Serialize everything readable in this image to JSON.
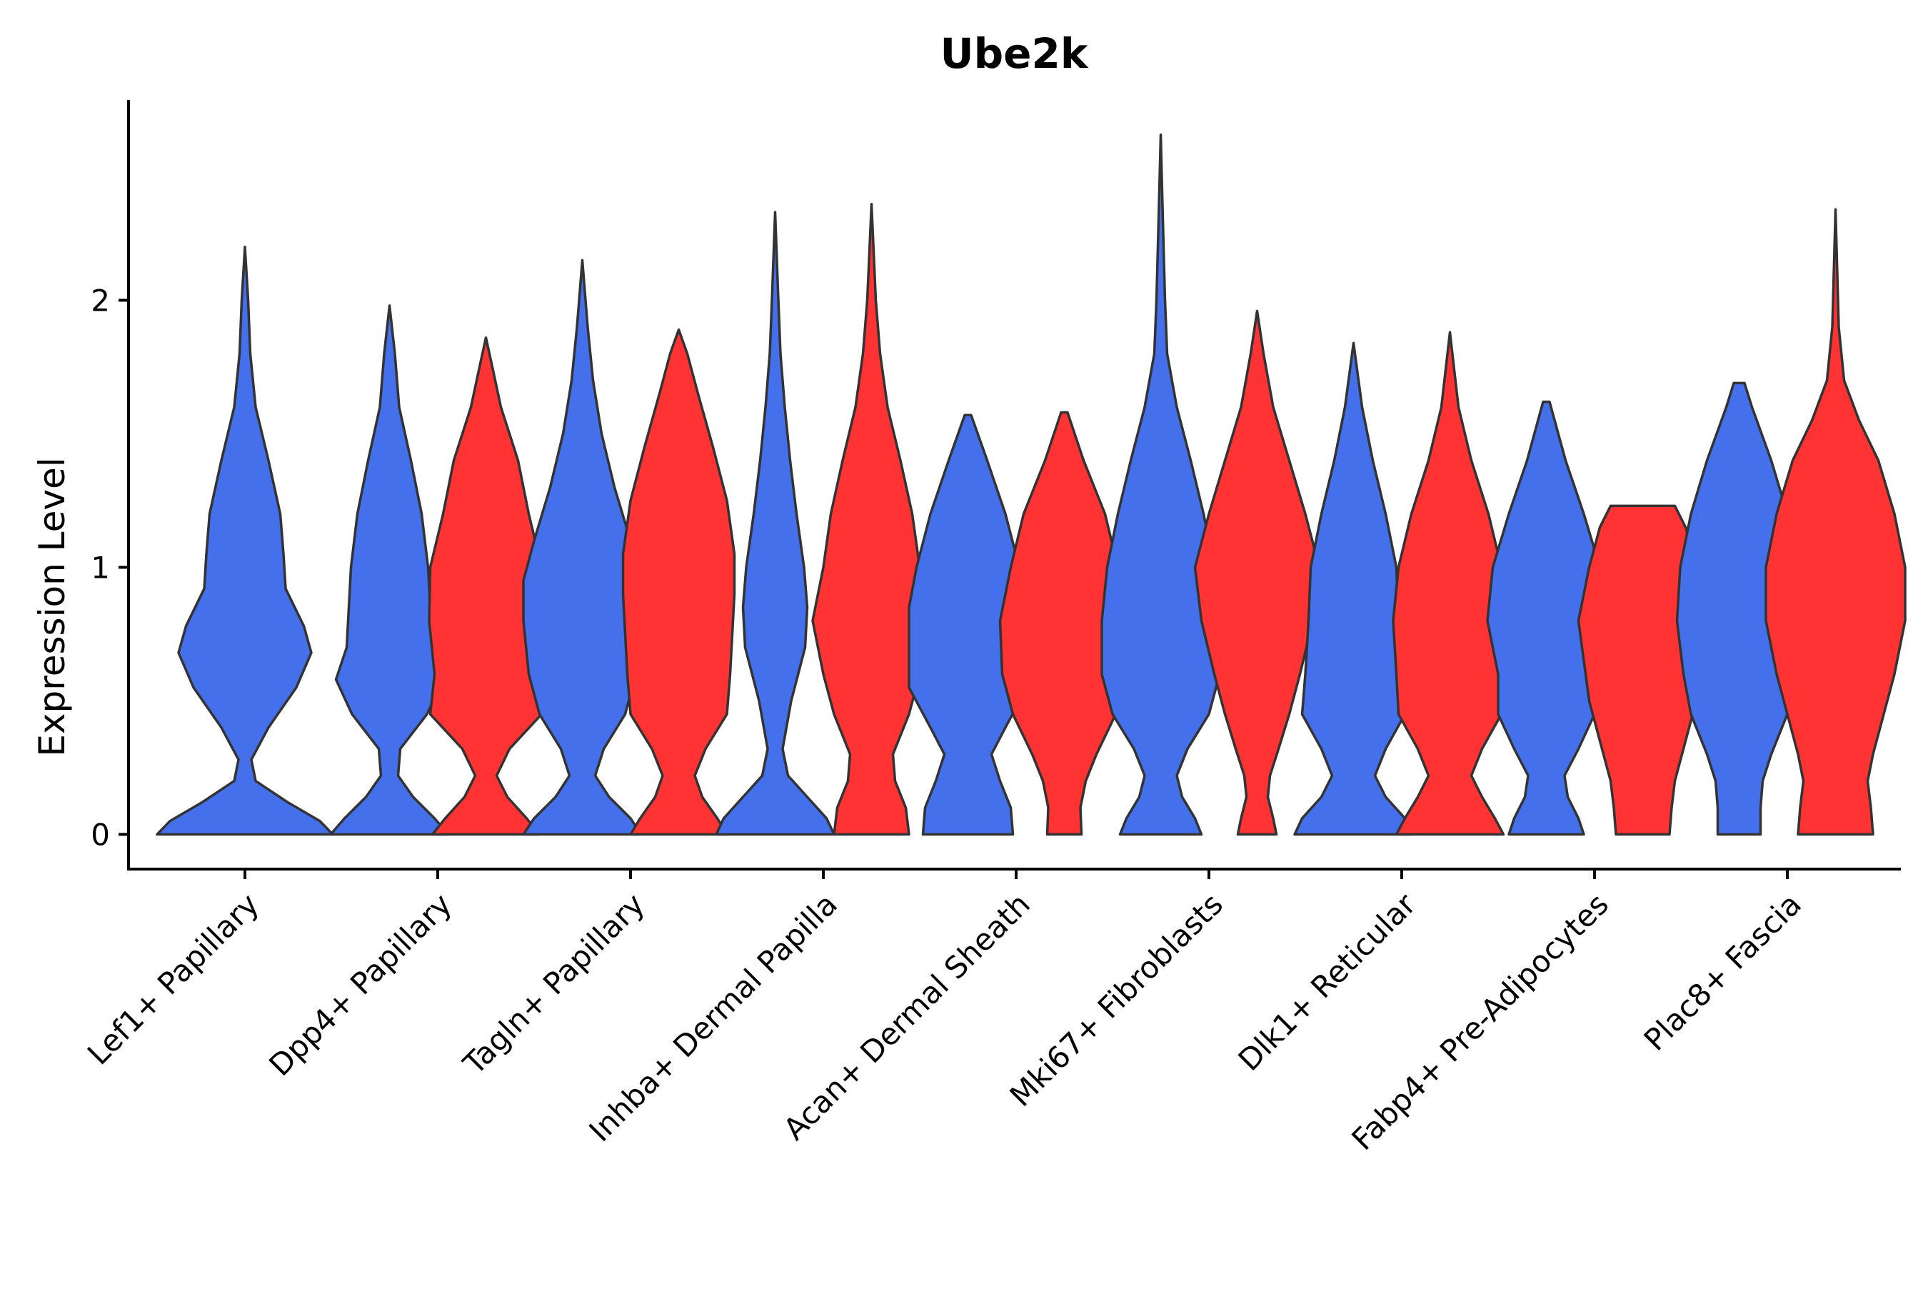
{
  "chart_data": {
    "type": "violin",
    "title": "Ube2k",
    "xlabel": "",
    "ylabel": "Expression Level",
    "ylim": [
      -0.13,
      2.75
    ],
    "yticks": [
      0,
      1,
      2
    ],
    "categories": [
      "Lef1+ Papillary",
      "Dpp4+ Papillary",
      "Tagln+ Papillary",
      "Inhba+ Dermal Papilla",
      "Acan+ Dermal Sheath",
      "Mki67+ Fibroblasts",
      "Dlk1+ Reticular",
      "Fabp4+ Pre-Adipocytes",
      "Plac8+ Fascia"
    ],
    "series_colors": {
      "blue": "#4470EB",
      "red": "#FF3333"
    },
    "violins": [
      {
        "category": "Lef1+ Papillary",
        "group": "blue",
        "offset": 0,
        "max": 2.2,
        "profile": [
          [
            0,
            0.82
          ],
          [
            0.05,
            0.7
          ],
          [
            0.12,
            0.4
          ],
          [
            0.2,
            0.1
          ],
          [
            0.28,
            0.06
          ],
          [
            0.4,
            0.22
          ],
          [
            0.55,
            0.48
          ],
          [
            0.68,
            0.62
          ],
          [
            0.78,
            0.55
          ],
          [
            0.92,
            0.38
          ],
          [
            1.05,
            0.36
          ],
          [
            1.2,
            0.33
          ],
          [
            1.4,
            0.22
          ],
          [
            1.6,
            0.1
          ],
          [
            1.8,
            0.05
          ],
          [
            2.0,
            0.03
          ],
          [
            2.2,
            0
          ]
        ]
      },
      {
        "category": "Dpp4+ Papillary",
        "group": "blue",
        "offset": -0.25,
        "max": 1.98,
        "profile": [
          [
            0,
            0.55
          ],
          [
            0.06,
            0.42
          ],
          [
            0.14,
            0.22
          ],
          [
            0.22,
            0.08
          ],
          [
            0.32,
            0.1
          ],
          [
            0.45,
            0.35
          ],
          [
            0.58,
            0.5
          ],
          [
            0.7,
            0.4
          ],
          [
            0.85,
            0.38
          ],
          [
            1.0,
            0.36
          ],
          [
            1.2,
            0.3
          ],
          [
            1.4,
            0.2
          ],
          [
            1.6,
            0.09
          ],
          [
            1.8,
            0.05
          ],
          [
            1.98,
            0
          ]
        ]
      },
      {
        "category": "Dpp4+ Papillary",
        "group": "red",
        "offset": 0.25,
        "max": 1.86,
        "profile": [
          [
            0,
            0.5
          ],
          [
            0.06,
            0.38
          ],
          [
            0.14,
            0.2
          ],
          [
            0.22,
            0.1
          ],
          [
            0.32,
            0.22
          ],
          [
            0.45,
            0.52
          ],
          [
            0.6,
            0.48
          ],
          [
            0.8,
            0.53
          ],
          [
            1.0,
            0.52
          ],
          [
            1.2,
            0.4
          ],
          [
            1.4,
            0.3
          ],
          [
            1.6,
            0.14
          ],
          [
            1.75,
            0.06
          ],
          [
            1.86,
            0
          ]
        ]
      },
      {
        "category": "Tagln+ Papillary",
        "group": "blue",
        "offset": -0.25,
        "max": 2.15,
        "profile": [
          [
            0,
            0.55
          ],
          [
            0.06,
            0.45
          ],
          [
            0.14,
            0.25
          ],
          [
            0.22,
            0.12
          ],
          [
            0.32,
            0.2
          ],
          [
            0.45,
            0.4
          ],
          [
            0.6,
            0.5
          ],
          [
            0.8,
            0.55
          ],
          [
            0.95,
            0.55
          ],
          [
            1.1,
            0.45
          ],
          [
            1.3,
            0.3
          ],
          [
            1.5,
            0.18
          ],
          [
            1.7,
            0.1
          ],
          [
            1.9,
            0.05
          ],
          [
            2.15,
            0
          ]
        ]
      },
      {
        "category": "Tagln+ Papillary",
        "group": "red",
        "offset": 0.25,
        "max": 1.89,
        "profile": [
          [
            0,
            0.45
          ],
          [
            0.06,
            0.36
          ],
          [
            0.14,
            0.22
          ],
          [
            0.22,
            0.15
          ],
          [
            0.32,
            0.25
          ],
          [
            0.45,
            0.45
          ],
          [
            0.6,
            0.48
          ],
          [
            0.75,
            0.5
          ],
          [
            0.9,
            0.52
          ],
          [
            1.05,
            0.52
          ],
          [
            1.25,
            0.45
          ],
          [
            1.45,
            0.32
          ],
          [
            1.65,
            0.18
          ],
          [
            1.8,
            0.08
          ],
          [
            1.89,
            0.0
          ]
        ]
      },
      {
        "category": "Inhba+ Dermal Papilla",
        "group": "blue",
        "offset": -0.25,
        "max": 2.33,
        "profile": [
          [
            0,
            0.55
          ],
          [
            0.06,
            0.48
          ],
          [
            0.14,
            0.3
          ],
          [
            0.22,
            0.12
          ],
          [
            0.32,
            0.07
          ],
          [
            0.5,
            0.15
          ],
          [
            0.7,
            0.28
          ],
          [
            0.85,
            0.3
          ],
          [
            1.0,
            0.27
          ],
          [
            1.2,
            0.2
          ],
          [
            1.4,
            0.14
          ],
          [
            1.6,
            0.09
          ],
          [
            1.8,
            0.05
          ],
          [
            2.0,
            0.03
          ],
          [
            2.33,
            0
          ]
        ]
      },
      {
        "category": "Inhba+ Dermal Papilla",
        "group": "red",
        "offset": 0.25,
        "max": 2.36,
        "profile": [
          [
            0,
            0.35
          ],
          [
            0.1,
            0.32
          ],
          [
            0.2,
            0.22
          ],
          [
            0.3,
            0.2
          ],
          [
            0.45,
            0.35
          ],
          [
            0.6,
            0.45
          ],
          [
            0.8,
            0.55
          ],
          [
            1.0,
            0.45
          ],
          [
            1.2,
            0.38
          ],
          [
            1.4,
            0.27
          ],
          [
            1.6,
            0.15
          ],
          [
            1.8,
            0.08
          ],
          [
            2.0,
            0.04
          ],
          [
            2.36,
            0
          ]
        ]
      },
      {
        "category": "Acan+ Dermal Sheath",
        "group": "blue",
        "offset": -0.25,
        "max": 1.57,
        "profile": [
          [
            0,
            0.42
          ],
          [
            0.1,
            0.4
          ],
          [
            0.2,
            0.3
          ],
          [
            0.3,
            0.22
          ],
          [
            0.4,
            0.35
          ],
          [
            0.55,
            0.55
          ],
          [
            0.7,
            0.55
          ],
          [
            0.85,
            0.55
          ],
          [
            1.0,
            0.48
          ],
          [
            1.2,
            0.35
          ],
          [
            1.4,
            0.18
          ],
          [
            1.57,
            0.03
          ]
        ]
      },
      {
        "category": "Acan+ Dermal Sheath",
        "group": "red",
        "offset": 0.25,
        "max": 1.58,
        "profile": [
          [
            0,
            0.16
          ],
          [
            0.1,
            0.15
          ],
          [
            0.2,
            0.2
          ],
          [
            0.3,
            0.3
          ],
          [
            0.45,
            0.48
          ],
          [
            0.6,
            0.58
          ],
          [
            0.8,
            0.6
          ],
          [
            1.0,
            0.5
          ],
          [
            1.2,
            0.38
          ],
          [
            1.4,
            0.18
          ],
          [
            1.58,
            0.03
          ]
        ]
      },
      {
        "category": "Mki67+ Fibroblasts",
        "group": "blue",
        "offset": -0.25,
        "max": 2.62,
        "profile": [
          [
            0,
            0.38
          ],
          [
            0.06,
            0.32
          ],
          [
            0.14,
            0.2
          ],
          [
            0.22,
            0.15
          ],
          [
            0.32,
            0.25
          ],
          [
            0.45,
            0.45
          ],
          [
            0.6,
            0.55
          ],
          [
            0.8,
            0.55
          ],
          [
            1.0,
            0.5
          ],
          [
            1.2,
            0.4
          ],
          [
            1.4,
            0.28
          ],
          [
            1.6,
            0.15
          ],
          [
            1.8,
            0.06
          ],
          [
            2.0,
            0.04
          ],
          [
            2.3,
            0.02
          ],
          [
            2.62,
            0
          ]
        ]
      },
      {
        "category": "Mki67+ Fibroblasts",
        "group": "red",
        "offset": 0.25,
        "max": 1.96,
        "profile": [
          [
            0,
            0.18
          ],
          [
            0.06,
            0.15
          ],
          [
            0.14,
            0.1
          ],
          [
            0.22,
            0.12
          ],
          [
            0.32,
            0.2
          ],
          [
            0.45,
            0.3
          ],
          [
            0.6,
            0.4
          ],
          [
            0.8,
            0.52
          ],
          [
            1.0,
            0.58
          ],
          [
            1.2,
            0.45
          ],
          [
            1.4,
            0.3
          ],
          [
            1.6,
            0.15
          ],
          [
            1.8,
            0.06
          ],
          [
            1.96,
            0
          ]
        ]
      },
      {
        "category": "Dlk1+ Reticular",
        "group": "blue",
        "offset": -0.25,
        "max": 1.84,
        "profile": [
          [
            0,
            0.55
          ],
          [
            0.06,
            0.48
          ],
          [
            0.14,
            0.3
          ],
          [
            0.22,
            0.2
          ],
          [
            0.32,
            0.3
          ],
          [
            0.45,
            0.48
          ],
          [
            0.6,
            0.45
          ],
          [
            0.8,
            0.42
          ],
          [
            1.0,
            0.4
          ],
          [
            1.2,
            0.3
          ],
          [
            1.4,
            0.18
          ],
          [
            1.6,
            0.08
          ],
          [
            1.84,
            0
          ]
        ]
      },
      {
        "category": "Dlk1+ Reticular",
        "group": "red",
        "offset": 0.25,
        "max": 1.88,
        "profile": [
          [
            0,
            0.5
          ],
          [
            0.06,
            0.42
          ],
          [
            0.14,
            0.3
          ],
          [
            0.22,
            0.2
          ],
          [
            0.32,
            0.3
          ],
          [
            0.45,
            0.48
          ],
          [
            0.6,
            0.5
          ],
          [
            0.8,
            0.53
          ],
          [
            1.0,
            0.48
          ],
          [
            1.2,
            0.36
          ],
          [
            1.4,
            0.2
          ],
          [
            1.6,
            0.08
          ],
          [
            1.88,
            0
          ]
        ]
      },
      {
        "category": "Fabp4+ Pre-Adipocytes",
        "group": "blue",
        "offset": -0.25,
        "max": 1.62,
        "profile": [
          [
            0,
            0.35
          ],
          [
            0.06,
            0.3
          ],
          [
            0.14,
            0.2
          ],
          [
            0.22,
            0.17
          ],
          [
            0.32,
            0.3
          ],
          [
            0.45,
            0.45
          ],
          [
            0.6,
            0.45
          ],
          [
            0.8,
            0.55
          ],
          [
            1.0,
            0.5
          ],
          [
            1.2,
            0.35
          ],
          [
            1.4,
            0.18
          ],
          [
            1.62,
            0.03
          ]
        ]
      },
      {
        "category": "Fabp4+ Pre-Adipocytes",
        "group": "red",
        "offset": 0.25,
        "max": 1.23,
        "profile": [
          [
            0,
            0.25
          ],
          [
            0.1,
            0.27
          ],
          [
            0.2,
            0.3
          ],
          [
            0.35,
            0.4
          ],
          [
            0.5,
            0.5
          ],
          [
            0.65,
            0.55
          ],
          [
            0.8,
            0.6
          ],
          [
            1.0,
            0.5
          ],
          [
            1.15,
            0.4
          ],
          [
            1.23,
            0.3
          ]
        ]
      },
      {
        "category": "Plac8+ Fascia",
        "group": "blue",
        "offset": -0.25,
        "max": 1.69,
        "profile": [
          [
            0,
            0.2
          ],
          [
            0.1,
            0.2
          ],
          [
            0.2,
            0.22
          ],
          [
            0.3,
            0.3
          ],
          [
            0.45,
            0.45
          ],
          [
            0.6,
            0.52
          ],
          [
            0.8,
            0.58
          ],
          [
            1.0,
            0.55
          ],
          [
            1.2,
            0.45
          ],
          [
            1.4,
            0.3
          ],
          [
            1.6,
            0.12
          ],
          [
            1.69,
            0.05
          ]
        ]
      },
      {
        "category": "Plac8+ Fascia",
        "group": "red",
        "offset": 0.25,
        "max": 2.34,
        "profile": [
          [
            0,
            0.35
          ],
          [
            0.1,
            0.33
          ],
          [
            0.2,
            0.3
          ],
          [
            0.3,
            0.35
          ],
          [
            0.45,
            0.45
          ],
          [
            0.6,
            0.55
          ],
          [
            0.8,
            0.65
          ],
          [
            1.0,
            0.65
          ],
          [
            1.2,
            0.55
          ],
          [
            1.4,
            0.4
          ],
          [
            1.55,
            0.22
          ],
          [
            1.7,
            0.08
          ],
          [
            1.9,
            0.03
          ],
          [
            2.34,
            0
          ]
        ]
      }
    ]
  }
}
